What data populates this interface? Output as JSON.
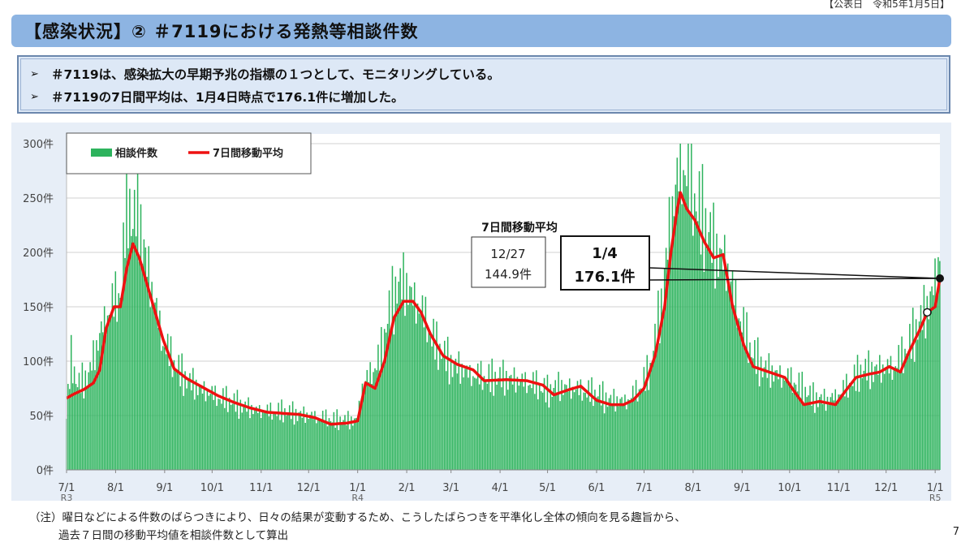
{
  "header": {
    "pub_date": "【公表日　令和5年1月5日】",
    "title": "【感染状況】② ＃7119における発熱等相談件数"
  },
  "summary": {
    "bullets": [
      "＃7119は、感染拡大の早期予兆の指標の１つとして、モニタリングしている。",
      "＃7119の7日間平均は、1月4日時点で176.1件に増加した。"
    ],
    "bullet_icon": "arrow-bullet-icon"
  },
  "chart_data": {
    "type": "bar",
    "title": "",
    "xlabel": "",
    "ylabel": "",
    "ylim": [
      0,
      300
    ],
    "yticks": [
      0,
      50,
      100,
      150,
      200,
      250,
      300
    ],
    "ytick_labels": [
      "0件",
      "50件",
      "100件",
      "150件",
      "200件",
      "250件",
      "300件"
    ],
    "x_start_date": "2021-07-01",
    "x_end_date": "2023-01-04",
    "xtick_labels": [
      {
        "date": "2021-07-01",
        "label": "7/1",
        "sub": "R3"
      },
      {
        "date": "2021-08-01",
        "label": "8/1"
      },
      {
        "date": "2021-09-01",
        "label": "9/1"
      },
      {
        "date": "2021-10-01",
        "label": "10/1"
      },
      {
        "date": "2021-11-01",
        "label": "11/1"
      },
      {
        "date": "2021-12-01",
        "label": "12/1"
      },
      {
        "date": "2022-01-01",
        "label": "1/1",
        "sub": "R4"
      },
      {
        "date": "2022-02-01",
        "label": "2/1"
      },
      {
        "date": "2022-03-01",
        "label": "3/1"
      },
      {
        "date": "2022-04-01",
        "label": "4/1"
      },
      {
        "date": "2022-05-01",
        "label": "5/1"
      },
      {
        "date": "2022-06-01",
        "label": "6/1"
      },
      {
        "date": "2022-07-01",
        "label": "7/1"
      },
      {
        "date": "2022-08-01",
        "label": "8/1"
      },
      {
        "date": "2022-09-01",
        "label": "9/1"
      },
      {
        "date": "2022-10-01",
        "label": "10/1"
      },
      {
        "date": "2022-11-01",
        "label": "11/1"
      },
      {
        "date": "2022-12-01",
        "label": "12/1"
      },
      {
        "date": "2023-01-01",
        "label": "1/1",
        "sub": "R5"
      }
    ],
    "series": [
      {
        "name": "相談件数",
        "kind": "bar",
        "color": "#2db35d",
        "points": [
          [
            "2021-07-01",
            50
          ],
          [
            "2021-07-04",
            100
          ],
          [
            "2021-07-08",
            75
          ],
          [
            "2021-07-15",
            85
          ],
          [
            "2021-07-20",
            110
          ],
          [
            "2021-07-25",
            135
          ],
          [
            "2021-07-31",
            150
          ],
          [
            "2021-08-05",
            160
          ],
          [
            "2021-08-08",
            255
          ],
          [
            "2021-08-12",
            215
          ],
          [
            "2021-08-15",
            240
          ],
          [
            "2021-08-20",
            190
          ],
          [
            "2021-08-25",
            155
          ],
          [
            "2021-08-31",
            115
          ],
          [
            "2021-09-07",
            95
          ],
          [
            "2021-09-15",
            80
          ],
          [
            "2021-09-25",
            72
          ],
          [
            "2021-10-05",
            65
          ],
          [
            "2021-10-15",
            60
          ],
          [
            "2021-10-25",
            55
          ],
          [
            "2021-11-05",
            52
          ],
          [
            "2021-11-15",
            52
          ],
          [
            "2021-11-25",
            50
          ],
          [
            "2021-12-05",
            48
          ],
          [
            "2021-12-15",
            45
          ],
          [
            "2021-12-25",
            44
          ],
          [
            "2022-01-01",
            45
          ],
          [
            "2022-01-04",
            75
          ],
          [
            "2022-01-10",
            88
          ],
          [
            "2022-01-15",
            100
          ],
          [
            "2022-01-20",
            135
          ],
          [
            "2022-01-26",
            165
          ],
          [
            "2022-02-01",
            165
          ],
          [
            "2022-02-07",
            150
          ],
          [
            "2022-02-13",
            135
          ],
          [
            "2022-02-20",
            110
          ],
          [
            "2022-03-01",
            95
          ],
          [
            "2022-03-15",
            85
          ],
          [
            "2022-03-25",
            82
          ],
          [
            "2022-04-05",
            82
          ],
          [
            "2022-04-20",
            78
          ],
          [
            "2022-05-01",
            70
          ],
          [
            "2022-05-10",
            75
          ],
          [
            "2022-05-20",
            72
          ],
          [
            "2022-06-01",
            68
          ],
          [
            "2022-06-10",
            62
          ],
          [
            "2022-06-20",
            62
          ],
          [
            "2022-06-28",
            72
          ],
          [
            "2022-07-05",
            90
          ],
          [
            "2022-07-12",
            150
          ],
          [
            "2022-07-18",
            225
          ],
          [
            "2022-07-22",
            260
          ],
          [
            "2022-07-26",
            275
          ],
          [
            "2022-08-01",
            245
          ],
          [
            "2022-08-07",
            225
          ],
          [
            "2022-08-14",
            200
          ],
          [
            "2022-08-22",
            185
          ],
          [
            "2022-08-30",
            140
          ],
          [
            "2022-09-07",
            105
          ],
          [
            "2022-09-15",
            90
          ],
          [
            "2022-09-25",
            85
          ],
          [
            "2022-10-05",
            78
          ],
          [
            "2022-10-15",
            65
          ],
          [
            "2022-10-25",
            62
          ],
          [
            "2022-11-05",
            72
          ],
          [
            "2022-11-15",
            88
          ],
          [
            "2022-11-25",
            90
          ],
          [
            "2022-12-05",
            92
          ],
          [
            "2022-12-12",
            102
          ],
          [
            "2022-12-20",
            125
          ],
          [
            "2022-12-27",
            145
          ],
          [
            "2023-01-01",
            170
          ],
          [
            "2023-01-04",
            195
          ]
        ]
      },
      {
        "name": "7日間移動平均",
        "kind": "line",
        "color": "#ee1111",
        "points": [
          [
            "2021-07-01",
            66
          ],
          [
            "2021-07-06",
            70
          ],
          [
            "2021-07-12",
            74
          ],
          [
            "2021-07-18",
            80
          ],
          [
            "2021-07-22",
            92
          ],
          [
            "2021-07-26",
            130
          ],
          [
            "2021-07-31",
            150
          ],
          [
            "2021-08-04",
            150
          ],
          [
            "2021-08-08",
            185
          ],
          [
            "2021-08-12",
            208
          ],
          [
            "2021-08-16",
            195
          ],
          [
            "2021-08-20",
            175
          ],
          [
            "2021-08-25",
            150
          ],
          [
            "2021-08-31",
            120
          ],
          [
            "2021-09-07",
            93
          ],
          [
            "2021-09-15",
            84
          ],
          [
            "2021-09-25",
            76
          ],
          [
            "2021-10-05",
            68
          ],
          [
            "2021-10-15",
            62
          ],
          [
            "2021-10-25",
            57
          ],
          [
            "2021-11-05",
            53
          ],
          [
            "2021-11-15",
            52
          ],
          [
            "2021-11-25",
            51
          ],
          [
            "2021-12-05",
            48
          ],
          [
            "2021-12-15",
            42
          ],
          [
            "2021-12-25",
            43
          ],
          [
            "2022-01-01",
            45
          ],
          [
            "2022-01-06",
            80
          ],
          [
            "2022-01-12",
            75
          ],
          [
            "2022-01-18",
            100
          ],
          [
            "2022-01-24",
            140
          ],
          [
            "2022-01-30",
            155
          ],
          [
            "2022-02-05",
            155
          ],
          [
            "2022-02-10",
            145
          ],
          [
            "2022-02-16",
            125
          ],
          [
            "2022-02-24",
            105
          ],
          [
            "2022-03-05",
            97
          ],
          [
            "2022-03-15",
            92
          ],
          [
            "2022-03-22",
            82
          ],
          [
            "2022-04-05",
            83
          ],
          [
            "2022-04-18",
            82
          ],
          [
            "2022-04-28",
            78
          ],
          [
            "2022-05-05",
            69
          ],
          [
            "2022-05-15",
            74
          ],
          [
            "2022-05-22",
            77
          ],
          [
            "2022-06-01",
            64
          ],
          [
            "2022-06-10",
            60
          ],
          [
            "2022-06-18",
            60
          ],
          [
            "2022-06-24",
            64
          ],
          [
            "2022-07-01",
            75
          ],
          [
            "2022-07-08",
            105
          ],
          [
            "2022-07-14",
            150
          ],
          [
            "2022-07-18",
            200
          ],
          [
            "2022-07-22",
            240
          ],
          [
            "2022-07-24",
            255
          ],
          [
            "2022-07-28",
            240
          ],
          [
            "2022-08-02",
            230
          ],
          [
            "2022-08-08",
            210
          ],
          [
            "2022-08-14",
            195
          ],
          [
            "2022-08-20",
            198
          ],
          [
            "2022-08-26",
            150
          ],
          [
            "2022-09-02",
            115
          ],
          [
            "2022-09-08",
            95
          ],
          [
            "2022-09-18",
            90
          ],
          [
            "2022-09-28",
            85
          ],
          [
            "2022-10-05",
            70
          ],
          [
            "2022-10-10",
            60
          ],
          [
            "2022-10-20",
            63
          ],
          [
            "2022-10-30",
            60
          ],
          [
            "2022-11-05",
            72
          ],
          [
            "2022-11-12",
            85
          ],
          [
            "2022-11-20",
            88
          ],
          [
            "2022-11-27",
            90
          ],
          [
            "2022-12-03",
            95
          ],
          [
            "2022-12-10",
            90
          ],
          [
            "2022-12-16",
            110
          ],
          [
            "2022-12-22",
            128
          ],
          [
            "2022-12-27",
            144.9
          ],
          [
            "2023-01-01",
            150
          ],
          [
            "2023-01-04",
            176.1
          ]
        ]
      }
    ],
    "legend": {
      "position": "top-left",
      "bar_label": "相談件数",
      "line_label": "7日間移動平均"
    },
    "annotations": {
      "header": "7日間移動平均",
      "prev": {
        "date": "2022-12-27",
        "value": 144.9,
        "label_date": "12/27",
        "label_value": "144.9件"
      },
      "latest": {
        "date": "2023-01-04",
        "value": 176.1,
        "label_date": "1/4",
        "label_value": "176.1件"
      }
    },
    "grid": true
  },
  "note": {
    "line1": "（注）曜日などによる件数のばらつきにより、日々の結果が変動するため、こうしたばらつきを平準化し全体の傾向を見る趣旨から、",
    "line2": "過去７日間の移動平均値を相談件数として算出"
  },
  "page_number": "7"
}
